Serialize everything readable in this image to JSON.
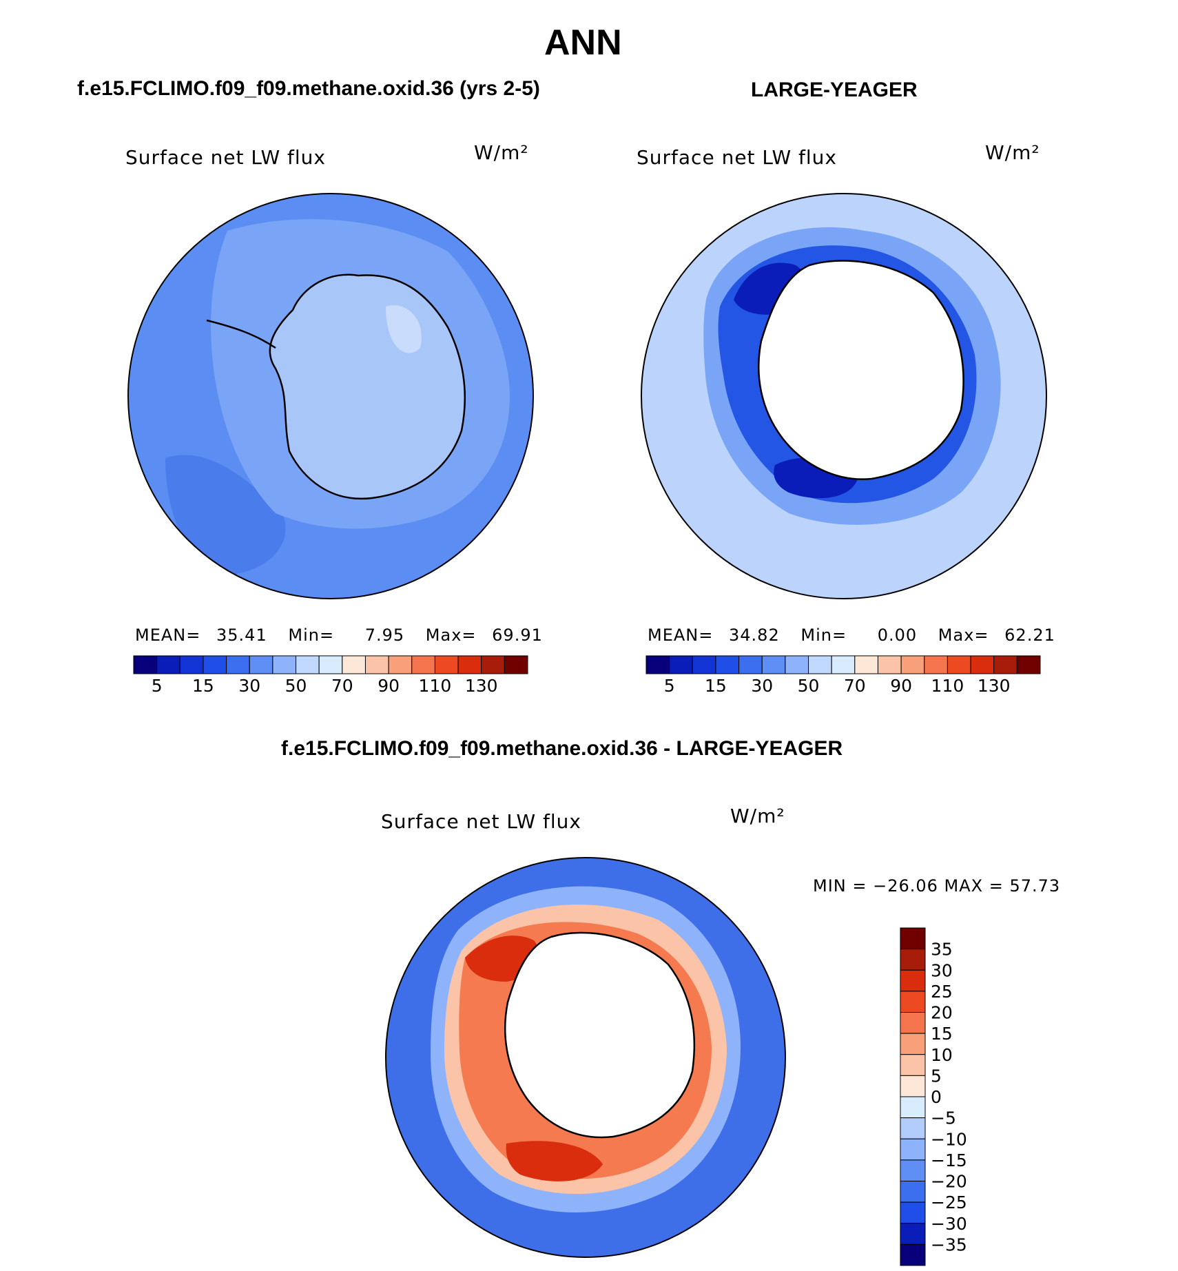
{
  "figure": {
    "title": "ANN",
    "panel1": {
      "header": "f.e15.FCLIMO.f09_f09.methane.oxid.36 (yrs 2-5)",
      "variable": "Surface net LW flux",
      "units": "W/m²",
      "stats": {
        "mean_label": "MEAN=",
        "mean": "35.41",
        "min_label": "Min=",
        "min": "7.95",
        "max_label": "Max=",
        "max": "69.91"
      }
    },
    "panel2": {
      "header": "LARGE-YEAGER",
      "variable": "Surface net LW flux",
      "units": "W/m²",
      "stats": {
        "mean_label": "MEAN=",
        "mean": "34.82",
        "min_label": "Min=",
        "min": "0.00",
        "max_label": "Max=",
        "max": "62.21"
      }
    },
    "panel3": {
      "header": "f.e15.FCLIMO.f09_f09.methane.oxid.36 - LARGE-YEAGER",
      "variable": "Surface net LW flux",
      "units": "W/m²",
      "stats_text": "MIN = −26.06 MAX =  57.73"
    }
  },
  "colorbar_horizontal": {
    "colors": [
      "#08007a",
      "#0a1db8",
      "#1233d6",
      "#1f4ee8",
      "#3b6ff0",
      "#5f8ff5",
      "#8fb3fa",
      "#c0d8fc",
      "#d8ecfd",
      "#fde8d8",
      "#fbc4a8",
      "#f8a07a",
      "#f5764e",
      "#ee4a22",
      "#d92d0d",
      "#a81c0a",
      "#700000"
    ],
    "tick_labels": [
      "5",
      "15",
      "30",
      "50",
      "70",
      "90",
      "110",
      "130"
    ]
  },
  "colorbar_vertical": {
    "colors": [
      "#700000",
      "#a81c0a",
      "#d92d0d",
      "#ee4a22",
      "#f5764e",
      "#f8a07a",
      "#fbc4a8",
      "#fde8d8",
      "#d8ecfd",
      "#b2cdfa",
      "#8fb3fa",
      "#5f8ff5",
      "#3b6ff0",
      "#1f4ee8",
      "#0a1db8",
      "#08007a"
    ],
    "tick_labels": [
      "35",
      "30",
      "25",
      "20",
      "15",
      "10",
      "5",
      "0",
      "−5",
      "−10",
      "−15",
      "−20",
      "−25",
      "−30",
      "−35"
    ]
  },
  "map_colors": {
    "ocean_p1": "#5b8df2",
    "land_p1": "#a9c6f8",
    "ocean_p2": "#bcd4fb",
    "coast_p2": "#1e4ee6",
    "diff_ocean": "#3e6fe8",
    "diff_warm": "#f57a50"
  }
}
